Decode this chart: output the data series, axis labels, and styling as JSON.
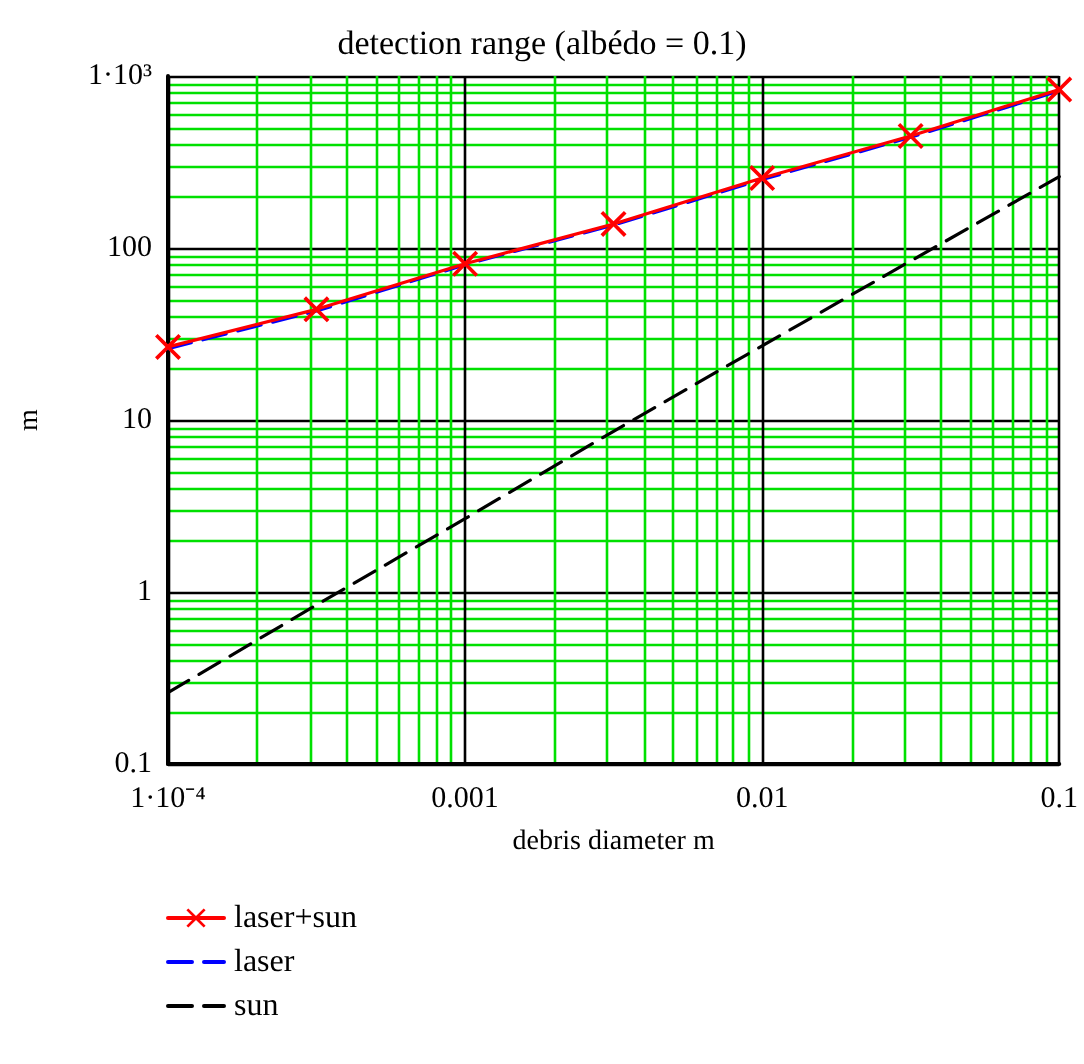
{
  "chart_data": {
    "type": "line",
    "title": "detection range (albédo = 0.1)",
    "xlabel": "debris diameter m",
    "ylabel": "m",
    "x": [
      0.0001,
      0.000316,
      0.001,
      0.00316,
      0.01,
      0.0316,
      0.1
    ],
    "series": [
      {
        "name": "laser+sun",
        "color": "#ff0000",
        "values": [
          26.6,
          44,
          81,
          138,
          255,
          448,
          834
        ],
        "marker": "cross",
        "line_style": "solid"
      },
      {
        "name": "laser",
        "color": "#0000ff",
        "values": [
          26,
          43,
          80,
          136,
          250,
          440,
          820
        ],
        "marker": "none",
        "line_style": "dashed"
      },
      {
        "name": "sun",
        "color": "#000000",
        "values": [
          0.26,
          0.84,
          2.67,
          8.6,
          27,
          84,
          260
        ],
        "marker": "none",
        "line_style": "dashed"
      }
    ],
    "log": "xy",
    "xlim": [
      0.0001,
      0.1
    ],
    "ylim": [
      0.1,
      1000
    ],
    "xticks": [
      {
        "value": 0.0001,
        "label": "1·10⁻⁴"
      },
      {
        "value": 0.0002,
        "label": null
      },
      {
        "value": 0.0003,
        "label": null
      },
      {
        "value": 0.0004,
        "label": null
      },
      {
        "value": 0.0005,
        "label": null
      },
      {
        "value": 0.0006,
        "label": null
      },
      {
        "value": 0.0007,
        "label": null
      },
      {
        "value": 0.0008,
        "label": null
      },
      {
        "value": 0.0009,
        "label": null
      },
      0.001,
      {
        "value": 0.002,
        "label": null
      },
      {
        "value": 0.003,
        "label": null
      },
      {
        "value": 0.004,
        "label": null
      },
      {
        "value": 0.005,
        "label": null
      },
      {
        "value": 0.006,
        "label": null
      },
      {
        "value": 0.007,
        "label": null
      },
      {
        "value": 0.008,
        "label": null
      },
      {
        "value": 0.009,
        "label": null
      },
      0.01,
      {
        "value": 0.02,
        "label": null
      },
      {
        "value": 0.03,
        "label": null
      },
      {
        "value": 0.04,
        "label": null
      },
      {
        "value": 0.05,
        "label": null
      },
      {
        "value": 0.06,
        "label": null
      },
      {
        "value": 0.07,
        "label": null
      },
      {
        "value": 0.08,
        "label": null
      },
      {
        "value": 0.09,
        "label": null
      },
      0.1
    ],
    "yticks": [
      0.1,
      {
        "value": 0.2,
        "label": null
      },
      {
        "value": 0.3,
        "label": null
      },
      {
        "value": 0.4,
        "label": null
      },
      {
        "value": 0.5,
        "label": null
      },
      {
        "value": 0.6,
        "label": null
      },
      {
        "value": 0.7,
        "label": null
      },
      {
        "value": 0.8,
        "label": null
      },
      {
        "value": 0.9,
        "label": null
      },
      1,
      {
        "value": 2,
        "label": null
      },
      {
        "value": 3,
        "label": null
      },
      {
        "value": 4,
        "label": null
      },
      {
        "value": 5,
        "label": null
      },
      {
        "value": 6,
        "label": null
      },
      {
        "value": 7,
        "label": null
      },
      {
        "value": 8,
        "label": null
      },
      {
        "value": 9,
        "label": null
      },
      10,
      {
        "value": 20,
        "label": null
      },
      {
        "value": 30,
        "label": null
      },
      {
        "value": 40,
        "label": null
      },
      {
        "value": 50,
        "label": null
      },
      {
        "value": 60,
        "label": null
      },
      {
        "value": 70,
        "label": null
      },
      {
        "value": 80,
        "label": null
      },
      {
        "value": 90,
        "label": null
      },
      100,
      {
        "value": 200,
        "label": null
      },
      {
        "value": 300,
        "label": null
      },
      {
        "value": 400,
        "label": null
      },
      {
        "value": 500,
        "label": null
      },
      {
        "value": 600,
        "label": null
      },
      {
        "value": 700,
        "label": null
      },
      {
        "value": 800,
        "label": null
      },
      {
        "value": 900,
        "label": null
      },
      {
        "value": 1000,
        "label": "1·10³"
      }
    ],
    "grid": true,
    "legend": "bottom left"
  }
}
